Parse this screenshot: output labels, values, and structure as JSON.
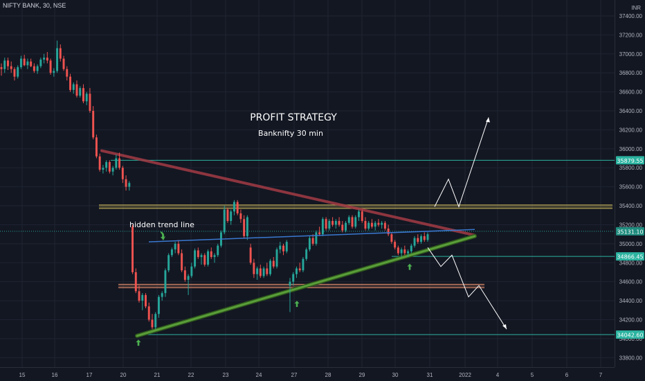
{
  "header": {
    "symbol_line": "NIFTY BANK, 30, NSE",
    "currency": "INR"
  },
  "colors": {
    "bg": "#131722",
    "grid": "#1f2433",
    "axis_text": "#b2b5be",
    "up": "#26a69a",
    "down": "#ef5350",
    "resistance_band": "#c9b458",
    "support_band": "#e08a6a",
    "downtrend": "#a33b45",
    "uptrend": "#5a9e3a",
    "hidden_trend": "#3a78d0",
    "level_line": "#2bb3a0",
    "annotation": "#ffffff",
    "arrow_marker": "#4caf50"
  },
  "chart_data": {
    "type": "candlestick",
    "title": "PROFIT STRATEGY",
    "subtitle": "Banknifty 30 min",
    "annotation": "hidden trend line",
    "x_tick_labels": [
      "15",
      "16",
      "17",
      "20",
      "21",
      "22",
      "23",
      "24",
      "27",
      "28",
      "29",
      "30",
      "31",
      "2022",
      "4",
      "5",
      "6",
      "7"
    ],
    "y_tick_labels": [
      "37400.00",
      "37200.00",
      "37000.00",
      "36800.00",
      "36600.00",
      "36400.00",
      "36200.00",
      "36000.00",
      "35800.00",
      "35600.00",
      "35400.00",
      "35200.00",
      "35000.00",
      "34800.00",
      "34600.00",
      "34400.00",
      "34200.00",
      "34000.00",
      "33800.00"
    ],
    "ylim": [
      33700,
      37480
    ],
    "price_labels": [
      "35879.55",
      "35131.10",
      "34866.45",
      "34042.60"
    ],
    "levels": [
      35879.55,
      34866.45,
      34042.6
    ],
    "current_price": 35131.1,
    "resistance_zone": 35390,
    "support_zone": 34555,
    "trendlines": [
      {
        "name": "downtrend",
        "from": [
          "17",
          35980
        ],
        "to": [
          "2022",
          35090
        ]
      },
      {
        "name": "uptrend",
        "from": [
          "20",
          34030
        ],
        "to": [
          "2022",
          35080
        ]
      },
      {
        "name": "hidden-trend",
        "from": [
          "20",
          35020
        ],
        "to": [
          "2022",
          35150
        ]
      }
    ],
    "projection_bullish": [
      35390,
      35680,
      35390,
      36330
    ],
    "projection_bearish": [
      34960,
      34760,
      34880,
      34440,
      34560,
      34100
    ],
    "candles": [
      [
        36860,
        36900,
        36770,
        36840
      ],
      [
        36840,
        36960,
        36800,
        36930
      ],
      [
        36930,
        36960,
        36830,
        36870
      ],
      [
        36870,
        36920,
        36800,
        36840
      ],
      [
        36840,
        36860,
        36720,
        36760
      ],
      [
        36760,
        36880,
        36740,
        36860
      ],
      [
        36860,
        36980,
        36840,
        36950
      ],
      [
        36950,
        36990,
        36870,
        36880
      ],
      [
        36880,
        36950,
        36840,
        36920
      ],
      [
        36920,
        36950,
        36860,
        36870
      ],
      [
        36870,
        36900,
        36800,
        36820
      ],
      [
        36820,
        36890,
        36790,
        36870
      ],
      [
        36870,
        36960,
        36850,
        36940
      ],
      [
        36940,
        37000,
        36900,
        36960
      ],
      [
        36960,
        37020,
        36900,
        36930
      ],
      [
        36930,
        36950,
        36780,
        36800
      ],
      [
        36800,
        36850,
        36760,
        36820
      ],
      [
        36820,
        37140,
        36800,
        37060
      ],
      [
        37060,
        37100,
        36920,
        36950
      ],
      [
        36950,
        36980,
        36820,
        36840
      ],
      [
        36840,
        36870,
        36720,
        36760
      ],
      [
        36760,
        36790,
        36600,
        36620
      ],
      [
        36620,
        36700,
        36580,
        36680
      ],
      [
        36680,
        36720,
        36540,
        36560
      ],
      [
        36560,
        36660,
        36540,
        36640
      ],
      [
        36640,
        36680,
        36480,
        36500
      ],
      [
        36500,
        36600,
        36460,
        36580
      ],
      [
        36580,
        36640,
        36380,
        36400
      ],
      [
        36400,
        36450,
        36100,
        36120
      ],
      [
        36120,
        36150,
        35900,
        35920
      ],
      [
        35920,
        35950,
        35760,
        35780
      ],
      [
        35780,
        35830,
        35740,
        35800
      ],
      [
        35800,
        35880,
        35760,
        35860
      ],
      [
        35860,
        35880,
        35740,
        35760
      ],
      [
        35760,
        35820,
        35720,
        35800
      ],
      [
        35800,
        35940,
        35780,
        35900
      ],
      [
        35900,
        35960,
        35780,
        35800
      ],
      [
        35800,
        35820,
        35640,
        35680
      ],
      [
        35680,
        35720,
        35560,
        35600
      ],
      [
        35600,
        35660,
        35560,
        35640
      ],
      [
        35180,
        35200,
        34680,
        34700
      ],
      [
        34700,
        34740,
        34480,
        34500
      ],
      [
        34500,
        34560,
        34380,
        34400
      ],
      [
        34400,
        34480,
        34300,
        34460
      ],
      [
        34460,
        34480,
        34320,
        34340
      ],
      [
        34340,
        34380,
        34180,
        34200
      ],
      [
        34200,
        34260,
        34100,
        34120
      ],
      [
        34120,
        34280,
        34100,
        34260
      ],
      [
        34260,
        34460,
        34220,
        34440
      ],
      [
        34440,
        34500,
        34400,
        34480
      ],
      [
        34480,
        34740,
        34440,
        34720
      ],
      [
        34720,
        34900,
        34700,
        34880
      ],
      [
        34880,
        34960,
        34860,
        34940
      ],
      [
        34940,
        35020,
        34900,
        35000
      ],
      [
        35000,
        35040,
        34880,
        34900
      ],
      [
        34900,
        34940,
        34700,
        34720
      ],
      [
        34720,
        34760,
        34600,
        34620
      ],
      [
        34620,
        34680,
        34460,
        34660
      ],
      [
        34660,
        34800,
        34640,
        34760
      ],
      [
        34760,
        34950,
        34740,
        34930
      ],
      [
        34930,
        34960,
        34840,
        34860
      ],
      [
        34860,
        34900,
        34780,
        34880
      ],
      [
        34880,
        34900,
        34760,
        34780
      ],
      [
        34780,
        34940,
        34760,
        34920
      ],
      [
        34920,
        34960,
        34840,
        34860
      ],
      [
        34860,
        34900,
        34800,
        34880
      ],
      [
        34880,
        35000,
        34860,
        34980
      ],
      [
        34980,
        35140,
        34960,
        35120
      ],
      [
        35120,
        35400,
        35100,
        35360
      ],
      [
        35360,
        35380,
        35220,
        35240
      ],
      [
        35240,
        35360,
        35200,
        35340
      ],
      [
        35340,
        35460,
        35300,
        35440
      ],
      [
        35440,
        35460,
        35300,
        35320
      ],
      [
        35320,
        35360,
        35220,
        35260
      ],
      [
        35260,
        35300,
        35060,
        35080
      ],
      [
        35080,
        35300,
        35040,
        35280
      ],
      [
        34960,
        35000,
        34780,
        34800
      ],
      [
        34800,
        34840,
        34640,
        34680
      ],
      [
        34680,
        34760,
        34620,
        34740
      ],
      [
        34740,
        34780,
        34640,
        34660
      ],
      [
        34660,
        34760,
        34640,
        34740
      ],
      [
        34740,
        34800,
        34660,
        34680
      ],
      [
        34680,
        34840,
        34660,
        34820
      ],
      [
        34820,
        34860,
        34740,
        34760
      ],
      [
        34760,
        34960,
        34740,
        34940
      ],
      [
        34940,
        35020,
        34900,
        34980
      ],
      [
        34980,
        35000,
        34880,
        34920
      ],
      [
        34920,
        35040,
        34900,
        35020
      ],
      [
        34560,
        34640,
        34280,
        34600
      ],
      [
        34600,
        34700,
        34560,
        34680
      ],
      [
        34680,
        34760,
        34640,
        34740
      ],
      [
        34740,
        34800,
        34700,
        34720
      ],
      [
        34720,
        34860,
        34700,
        34840
      ],
      [
        34840,
        34960,
        34820,
        34940
      ],
      [
        34940,
        35080,
        34920,
        35060
      ],
      [
        35060,
        35100,
        34980,
        35000
      ],
      [
        35000,
        35140,
        34980,
        35120
      ],
      [
        35120,
        35180,
        35080,
        35100
      ],
      [
        35100,
        35280,
        35080,
        35260
      ],
      [
        35260,
        35280,
        35140,
        35160
      ],
      [
        35160,
        35260,
        35140,
        35240
      ],
      [
        35240,
        35280,
        35180,
        35200
      ],
      [
        35200,
        35260,
        35160,
        35240
      ],
      [
        35240,
        35280,
        35180,
        35200
      ],
      [
        35200,
        35240,
        35120,
        35140
      ],
      [
        35140,
        35240,
        35120,
        35220
      ],
      [
        35220,
        35300,
        35200,
        35280
      ],
      [
        35280,
        35300,
        35160,
        35180
      ],
      [
        35180,
        35300,
        35160,
        35280
      ],
      [
        35280,
        35360,
        35240,
        35340
      ],
      [
        35340,
        35360,
        35220,
        35240
      ],
      [
        35240,
        35280,
        35140,
        35160
      ],
      [
        35160,
        35240,
        35140,
        35220
      ],
      [
        35220,
        35260,
        35160,
        35180
      ],
      [
        35180,
        35240,
        35140,
        35220
      ],
      [
        35220,
        35260,
        35180,
        35200
      ],
      [
        35200,
        35240,
        35160,
        35220
      ],
      [
        35220,
        35240,
        35140,
        35160
      ],
      [
        35160,
        35200,
        35080,
        35100
      ],
      [
        35100,
        35120,
        35000,
        35020
      ],
      [
        35020,
        35040,
        34940,
        34960
      ],
      [
        34960,
        34980,
        34880,
        34900
      ],
      [
        34900,
        34960,
        34860,
        34940
      ],
      [
        34940,
        34980,
        34880,
        34900
      ],
      [
        34900,
        34940,
        34860,
        34920
      ],
      [
        34920,
        35000,
        34900,
        34980
      ],
      [
        34980,
        35080,
        34960,
        35060
      ],
      [
        35060,
        35100,
        35000,
        35020
      ],
      [
        35020,
        35100,
        35000,
        35080
      ],
      [
        35080,
        35120,
        35020,
        35040
      ],
      [
        35040,
        35120,
        35020,
        35100
      ]
    ]
  }
}
